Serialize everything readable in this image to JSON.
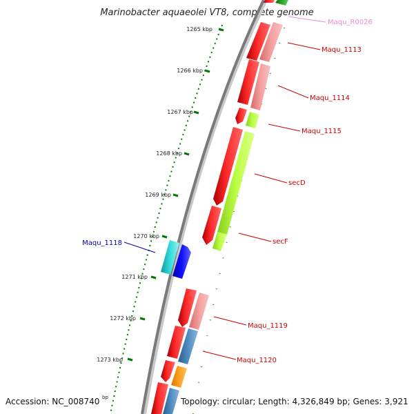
{
  "title": "Marinobacter aquaeolei VT8, complete genome",
  "colors": {
    "red": "#ff0000",
    "pink": "#f08080",
    "green": "#aaff33",
    "cyan": "#22cccc",
    "blue": "#0000ff",
    "steelblue": "#4682b4",
    "orange": "#ff9900",
    "darkgreen": "#228b22",
    "backbone": "#808080",
    "tick": "#007700"
  },
  "axis": {
    "tick_labels": [
      "1265 kbp",
      "1266 kbp",
      "1267 kbp",
      "1268 kbp",
      "1269 kbp",
      "1270 kbp",
      "1271 kbp",
      "1272 kbp",
      "1273 kbp"
    ],
    "partial_label": "bp"
  },
  "genes": [
    {
      "name": "Maqu_R0026",
      "label_color": "#f08ad8",
      "track": "outer",
      "color": "darkgreen"
    },
    {
      "name": "Maqu_1113",
      "label_color": "#cc0000",
      "track": "outer",
      "color": "pink"
    },
    {
      "name": "Maqu_1114",
      "label_color": "#cc0000",
      "track": "outer",
      "color": "pink"
    },
    {
      "name": "Maqu_1115",
      "label_color": "#cc0000",
      "track": "outer",
      "color": "green"
    },
    {
      "name": "secD",
      "label_color": "#cc0000",
      "track": "outer",
      "color": "green"
    },
    {
      "name": "secF",
      "label_color": "#cc0000",
      "track": "outer",
      "color": "green"
    },
    {
      "name": "Maqu_1118",
      "label_color": "#0000aa",
      "track": "inner",
      "color": "cyan"
    },
    {
      "name": "Maqu_1119",
      "label_color": "#cc0000",
      "track": "outer",
      "color": "pink"
    },
    {
      "name": "Maqu_1120",
      "label_color": "#cc0000",
      "track": "outer",
      "color": "steelblue"
    }
  ],
  "footer": {
    "accession": "Accession: NC_008740",
    "topology": "Topology: circular; Length: 4,326,849 bp; Genes: 3,921"
  }
}
